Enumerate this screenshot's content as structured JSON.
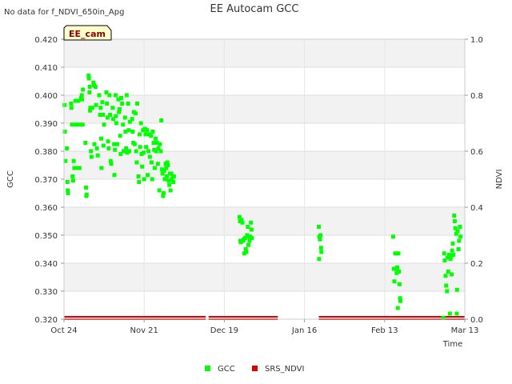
{
  "note": "No data for f_NDVI_650in_Apg",
  "site_tag": "EE_cam",
  "chart_data": {
    "type": "scatter",
    "title": "EE Autocam GCC",
    "xlabel": "Time",
    "ylabel": "GCC",
    "y2label": "NDVI",
    "xlim_day": [
      0,
      140
    ],
    "ylim": [
      0.32,
      0.42
    ],
    "y2lim": [
      0.0,
      1.0
    ],
    "x_ticks": [
      {
        "day": 0,
        "label": "Oct 24"
      },
      {
        "day": 28,
        "label": "Nov 21"
      },
      {
        "day": 56,
        "label": "Dec 19"
      },
      {
        "day": 84,
        "label": "Jan 16"
      },
      {
        "day": 112,
        "label": "Feb 13"
      },
      {
        "day": 140,
        "label": "Mar 13"
      }
    ],
    "y_ticks": [
      "0.320",
      "0.330",
      "0.340",
      "0.350",
      "0.360",
      "0.370",
      "0.380",
      "0.390",
      "0.400",
      "0.410",
      "0.420"
    ],
    "y2_ticks": [
      "0.0",
      "0.2",
      "0.4",
      "0.6",
      "0.8",
      "1.0"
    ],
    "legend": [
      {
        "name": "GCC",
        "color": "#00ff00"
      },
      {
        "name": "SRS_NDVI",
        "color": "#dd0000"
      }
    ],
    "series": [
      {
        "name": "GCC",
        "color": "#00ff00",
        "points": [
          [
            0.2,
            0.3965
          ],
          [
            0.3,
            0.387
          ],
          [
            0.5,
            0.3765
          ],
          [
            1.0,
            0.381
          ],
          [
            1.2,
            0.369
          ],
          [
            1.3,
            0.366
          ],
          [
            1.4,
            0.365
          ],
          [
            2.5,
            0.397
          ],
          [
            2.6,
            0.3955
          ],
          [
            2.8,
            0.3895
          ],
          [
            3.0,
            0.371
          ],
          [
            3.2,
            0.3695
          ],
          [
            3.4,
            0.3765
          ],
          [
            3.6,
            0.374
          ],
          [
            4.0,
            0.398
          ],
          [
            4.2,
            0.3895
          ],
          [
            4.5,
            0.374
          ],
          [
            5.0,
            0.398
          ],
          [
            5.2,
            0.3895
          ],
          [
            5.4,
            0.374
          ],
          [
            6.0,
            0.399
          ],
          [
            6.2,
            0.4
          ],
          [
            6.3,
            0.3985
          ],
          [
            6.5,
            0.3895
          ],
          [
            6.6,
            0.402
          ],
          [
            7.5,
            0.383
          ],
          [
            7.7,
            0.367
          ],
          [
            7.9,
            0.3645
          ],
          [
            7.8,
            0.364
          ],
          [
            8.6,
            0.407
          ],
          [
            8.7,
            0.406
          ],
          [
            8.9,
            0.401
          ],
          [
            9.0,
            0.403
          ],
          [
            9.2,
            0.3955
          ],
          [
            9.1,
            0.3945
          ],
          [
            9.4,
            0.38
          ],
          [
            9.6,
            0.378
          ],
          [
            9.9,
            0.3955
          ],
          [
            10.3,
            0.4045
          ],
          [
            10.5,
            0.4035
          ],
          [
            10.6,
            0.3825
          ],
          [
            11.0,
            0.403
          ],
          [
            11.2,
            0.3965
          ],
          [
            11.5,
            0.381
          ],
          [
            11.8,
            0.3785
          ],
          [
            12.3,
            0.4
          ],
          [
            12.6,
            0.393
          ],
          [
            12.8,
            0.3955
          ],
          [
            13.0,
            0.3845
          ],
          [
            13.1,
            0.374
          ],
          [
            13.4,
            0.3975
          ],
          [
            13.6,
            0.393
          ],
          [
            13.8,
            0.382
          ],
          [
            14.0,
            0.3895
          ],
          [
            14.8,
            0.401
          ],
          [
            15.0,
            0.397
          ],
          [
            15.2,
            0.392
          ],
          [
            15.4,
            0.3835
          ],
          [
            15.6,
            0.381
          ],
          [
            15.9,
            0.4
          ],
          [
            16.1,
            0.393
          ],
          [
            16.3,
            0.3765
          ],
          [
            16.5,
            0.3755
          ],
          [
            17.0,
            0.3955
          ],
          [
            17.2,
            0.3915
          ],
          [
            17.5,
            0.3825
          ],
          [
            17.6,
            0.3715
          ],
          [
            17.8,
            0.3805
          ],
          [
            18.0,
            0.4
          ],
          [
            18.1,
            0.3925
          ],
          [
            18.3,
            0.39
          ],
          [
            18.6,
            0.3825
          ],
          [
            19.0,
            0.3985
          ],
          [
            19.2,
            0.394
          ],
          [
            19.4,
            0.395
          ],
          [
            19.6,
            0.3855
          ],
          [
            19.8,
            0.379
          ],
          [
            20.0,
            0.399
          ],
          [
            20.3,
            0.397
          ],
          [
            20.6,
            0.3895
          ],
          [
            20.8,
            0.38
          ],
          [
            21.3,
            0.392
          ],
          [
            21.5,
            0.387
          ],
          [
            21.7,
            0.381
          ],
          [
            21.9,
            0.4
          ],
          [
            22.1,
            0.3795
          ],
          [
            22.4,
            0.397
          ],
          [
            22.6,
            0.3875
          ],
          [
            22.8,
            0.38
          ],
          [
            23.0,
            0.3905
          ],
          [
            23.8,
            0.3915
          ],
          [
            24.0,
            0.387
          ],
          [
            24.2,
            0.383
          ],
          [
            24.4,
            0.394
          ],
          [
            24.7,
            0.3825
          ],
          [
            25.0,
            0.3935
          ],
          [
            25.2,
            0.38
          ],
          [
            25.4,
            0.376
          ],
          [
            25.6,
            0.397
          ],
          [
            26.0,
            0.371
          ],
          [
            26.2,
            0.369
          ],
          [
            26.4,
            0.386
          ],
          [
            26.6,
            0.3815
          ],
          [
            26.9,
            0.39
          ],
          [
            27.1,
            0.379
          ],
          [
            27.3,
            0.3745
          ],
          [
            27.6,
            0.3875
          ],
          [
            27.8,
            0.3795
          ],
          [
            28.0,
            0.37
          ],
          [
            28.3,
            0.388
          ],
          [
            28.5,
            0.386
          ],
          [
            28.7,
            0.3815
          ],
          [
            29.0,
            0.3875
          ],
          [
            29.2,
            0.3715
          ],
          [
            29.5,
            0.38
          ],
          [
            29.7,
            0.386
          ],
          [
            30.0,
            0.378
          ],
          [
            30.4,
            0.3855
          ],
          [
            30.6,
            0.376
          ],
          [
            30.8,
            0.37
          ],
          [
            31.0,
            0.387
          ],
          [
            31.3,
            0.383
          ],
          [
            31.5,
            0.3805
          ],
          [
            31.7,
            0.374
          ],
          [
            32.0,
            0.3845
          ],
          [
            32.2,
            0.38
          ],
          [
            32.5,
            0.383
          ],
          [
            32.8,
            0.3755
          ],
          [
            33.0,
            0.381
          ],
          [
            33.3,
            0.366
          ],
          [
            33.5,
            0.3825
          ],
          [
            33.8,
            0.38
          ],
          [
            34.0,
            0.391
          ],
          [
            34.2,
            0.3735
          ],
          [
            34.4,
            0.372
          ],
          [
            34.6,
            0.364
          ],
          [
            34.8,
            0.365
          ],
          [
            35.0,
            0.373
          ],
          [
            35.2,
            0.37
          ],
          [
            35.5,
            0.3755
          ],
          [
            35.7,
            0.374
          ],
          [
            35.9,
            0.371
          ],
          [
            36.1,
            0.376
          ],
          [
            36.3,
            0.375
          ],
          [
            36.6,
            0.3695
          ],
          [
            36.8,
            0.368
          ],
          [
            37.0,
            0.372
          ],
          [
            37.2,
            0.366
          ],
          [
            37.5,
            0.372
          ],
          [
            37.7,
            0.37
          ],
          [
            38.0,
            0.371
          ],
          [
            38.2,
            0.369
          ],
          [
            38.4,
            0.371
          ],
          [
            61.3,
            0.3565
          ],
          [
            61.5,
            0.355
          ],
          [
            61.6,
            0.348
          ],
          [
            61.8,
            0.3475
          ],
          [
            62.0,
            0.3555
          ],
          [
            62.3,
            0.3545
          ],
          [
            62.5,
            0.348
          ],
          [
            62.8,
            0.3485
          ],
          [
            63.0,
            0.3435
          ],
          [
            63.2,
            0.349
          ],
          [
            63.5,
            0.345
          ],
          [
            63.7,
            0.344
          ],
          [
            64.0,
            0.35
          ],
          [
            64.2,
            0.353
          ],
          [
            64.4,
            0.3465
          ],
          [
            64.6,
            0.3495
          ],
          [
            64.8,
            0.348
          ],
          [
            65.0,
            0.3495
          ],
          [
            65.3,
            0.3545
          ],
          [
            65.5,
            0.352
          ],
          [
            65.6,
            0.349
          ],
          [
            89.0,
            0.353
          ],
          [
            89.2,
            0.3495
          ],
          [
            89.4,
            0.3485
          ],
          [
            89.6,
            0.35
          ],
          [
            89.1,
            0.3415
          ],
          [
            89.8,
            0.3455
          ],
          [
            89.9,
            0.344
          ],
          [
            115.0,
            0.3495
          ],
          [
            115.2,
            0.338
          ],
          [
            115.4,
            0.3335
          ],
          [
            115.7,
            0.3435
          ],
          [
            116.0,
            0.338
          ],
          [
            116.2,
            0.3365
          ],
          [
            116.4,
            0.3385
          ],
          [
            116.6,
            0.324
          ],
          [
            116.8,
            0.3435
          ],
          [
            117.0,
            0.337
          ],
          [
            117.2,
            0.3325
          ],
          [
            117.4,
            0.3275
          ],
          [
            117.5,
            0.3265
          ],
          [
            132.5,
            0.3205
          ],
          [
            132.8,
            0.3435
          ],
          [
            133.0,
            0.341
          ],
          [
            133.3,
            0.3355
          ],
          [
            133.5,
            0.332
          ],
          [
            133.8,
            0.33
          ],
          [
            134.0,
            0.342
          ],
          [
            134.2,
            0.337
          ],
          [
            134.5,
            0.343
          ],
          [
            134.8,
            0.322
          ],
          [
            135.0,
            0.3415
          ],
          [
            135.2,
            0.3425
          ],
          [
            135.4,
            0.336
          ],
          [
            135.6,
            0.3445
          ],
          [
            135.8,
            0.347
          ],
          [
            136.0,
            0.343
          ],
          [
            136.3,
            0.357
          ],
          [
            136.5,
            0.355
          ],
          [
            136.7,
            0.3525
          ],
          [
            137.0,
            0.3505
          ],
          [
            137.2,
            0.322
          ],
          [
            137.3,
            0.3305
          ],
          [
            137.5,
            0.3515
          ],
          [
            137.8,
            0.345
          ],
          [
            138.0,
            0.348
          ],
          [
            138.3,
            0.353
          ],
          [
            138.5,
            0.3495
          ]
        ]
      },
      {
        "name": "SRS_NDVI",
        "color": "#dd0000",
        "segments": [
          [
            0,
            49.5
          ],
          [
            50.5,
            74.7
          ],
          [
            89.0,
            140
          ]
        ],
        "y2_value": 0.0
      }
    ]
  }
}
